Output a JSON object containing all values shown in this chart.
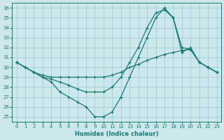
{
  "bg_color": "#cce8ec",
  "grid_color": "#a0ccd2",
  "line_color": "#1a7a6e",
  "xlabel": "Humidex (Indice chaleur)",
  "xlim": [
    -0.5,
    23.5
  ],
  "ylim": [
    24.5,
    36.5
  ],
  "yticks": [
    25,
    26,
    27,
    28,
    29,
    30,
    31,
    32,
    33,
    34,
    35,
    36
  ],
  "xticks": [
    0,
    1,
    2,
    3,
    4,
    5,
    6,
    7,
    8,
    9,
    10,
    11,
    12,
    13,
    14,
    15,
    16,
    17,
    18,
    19,
    20,
    21,
    22,
    23
  ],
  "line_a_x": [
    0,
    1,
    2,
    3,
    4,
    5,
    6,
    7,
    8,
    9,
    10,
    11,
    12,
    13,
    14,
    15,
    16,
    17,
    18,
    19,
    20,
    21,
    22,
    23
  ],
  "line_a_y": [
    30.5,
    30.0,
    29.5,
    29.0,
    28.5,
    27.5,
    27.0,
    26.5,
    26.0,
    25.0,
    25.0,
    25.5,
    27.0,
    29.0,
    31.0,
    33.0,
    35.0,
    36.0,
    35.0,
    31.5,
    32.0,
    30.5,
    30.0,
    29.5
  ],
  "line_b_x": [
    0,
    1,
    2,
    3,
    4,
    5,
    6,
    7,
    8,
    9,
    10,
    11,
    12,
    13,
    14,
    15,
    16,
    17,
    18,
    19,
    20,
    21,
    22,
    23
  ],
  "line_b_y": [
    30.5,
    30.0,
    29.5,
    29.2,
    29.0,
    29.0,
    29.0,
    29.0,
    29.0,
    29.0,
    29.0,
    29.2,
    29.5,
    30.0,
    30.3,
    30.7,
    31.0,
    31.3,
    31.5,
    31.7,
    31.8,
    30.5,
    30.0,
    29.5
  ],
  "line_c_x": [
    0,
    1,
    2,
    3,
    4,
    5,
    6,
    7,
    8,
    9,
    10,
    11,
    12,
    13,
    14,
    15,
    16,
    17,
    18,
    19,
    20,
    21,
    22,
    23
  ],
  "line_c_y": [
    30.5,
    30.0,
    29.5,
    29.0,
    28.8,
    28.5,
    28.2,
    27.8,
    27.5,
    27.5,
    27.5,
    28.0,
    29.0,
    30.5,
    32.0,
    34.0,
    35.5,
    35.8,
    35.0,
    32.0,
    31.8,
    30.5,
    30.0,
    29.5
  ]
}
